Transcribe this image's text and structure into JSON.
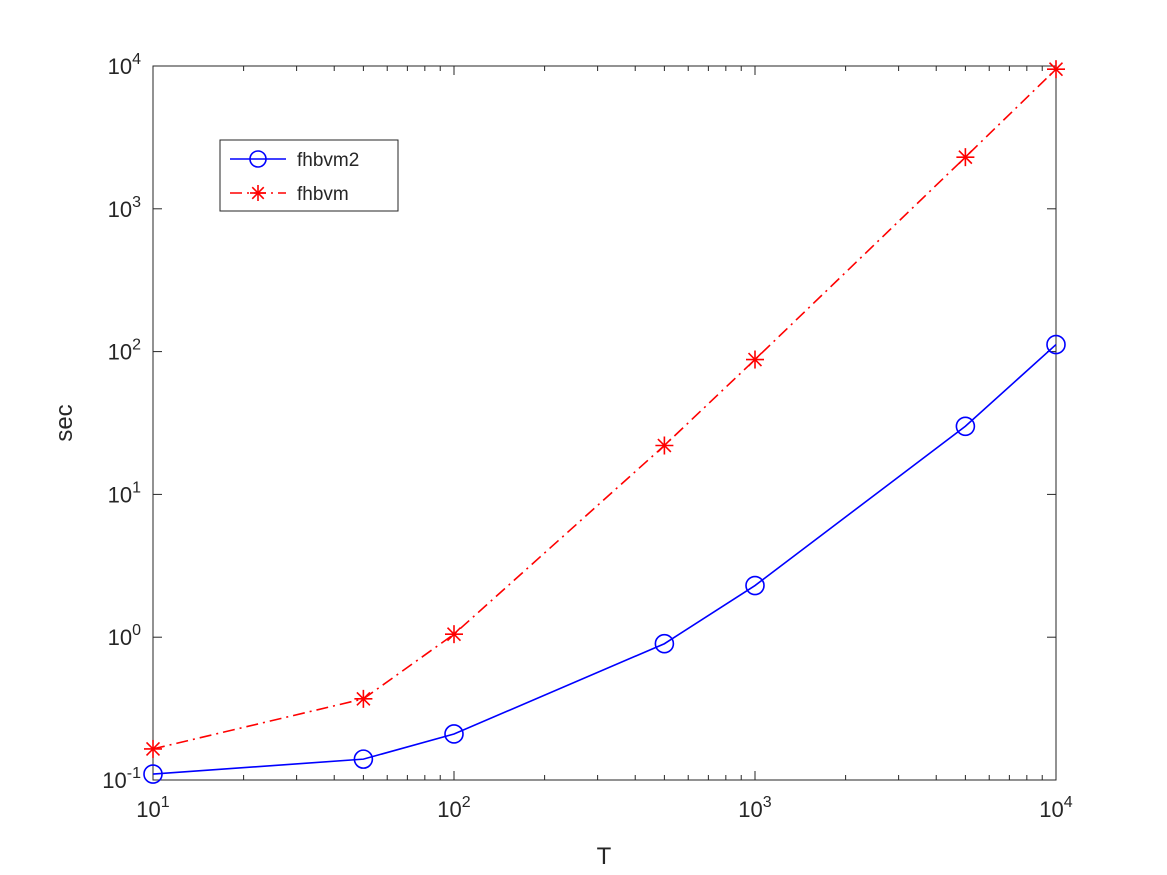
{
  "chart_data": {
    "type": "line",
    "xscale": "log",
    "yscale": "log",
    "xlabel": "T",
    "ylabel": "sec",
    "xlim": [
      10,
      10000
    ],
    "ylim": [
      0.1,
      10000
    ],
    "grid": false,
    "legend_position": "top-left",
    "x_ticks": [
      {
        "value": 10,
        "base": "10",
        "exp": "1"
      },
      {
        "value": 100,
        "base": "10",
        "exp": "2"
      },
      {
        "value": 1000,
        "base": "10",
        "exp": "3"
      },
      {
        "value": 10000,
        "base": "10",
        "exp": "4"
      }
    ],
    "y_ticks": [
      {
        "value": 0.1,
        "base": "10",
        "exp": "-1"
      },
      {
        "value": 1,
        "base": "10",
        "exp": "0"
      },
      {
        "value": 10,
        "base": "10",
        "exp": "1"
      },
      {
        "value": 100,
        "base": "10",
        "exp": "2"
      },
      {
        "value": 1000,
        "base": "10",
        "exp": "3"
      },
      {
        "value": 10000,
        "base": "10",
        "exp": "4"
      }
    ],
    "series": [
      {
        "name": "fhbvm2",
        "color": "#0000ff",
        "line_style": "solid",
        "marker": "circle",
        "x": [
          10,
          50,
          100,
          500,
          1000,
          5000,
          10000
        ],
        "y": [
          0.11,
          0.14,
          0.21,
          0.9,
          2.3,
          30,
          112
        ]
      },
      {
        "name": "fhbvm",
        "color": "#ff0000",
        "line_style": "dash-dot",
        "marker": "asterisk",
        "x": [
          10,
          50,
          100,
          500,
          1000,
          5000,
          10000
        ],
        "y": [
          0.165,
          0.37,
          1.05,
          22,
          88,
          2300,
          9500
        ]
      }
    ]
  }
}
